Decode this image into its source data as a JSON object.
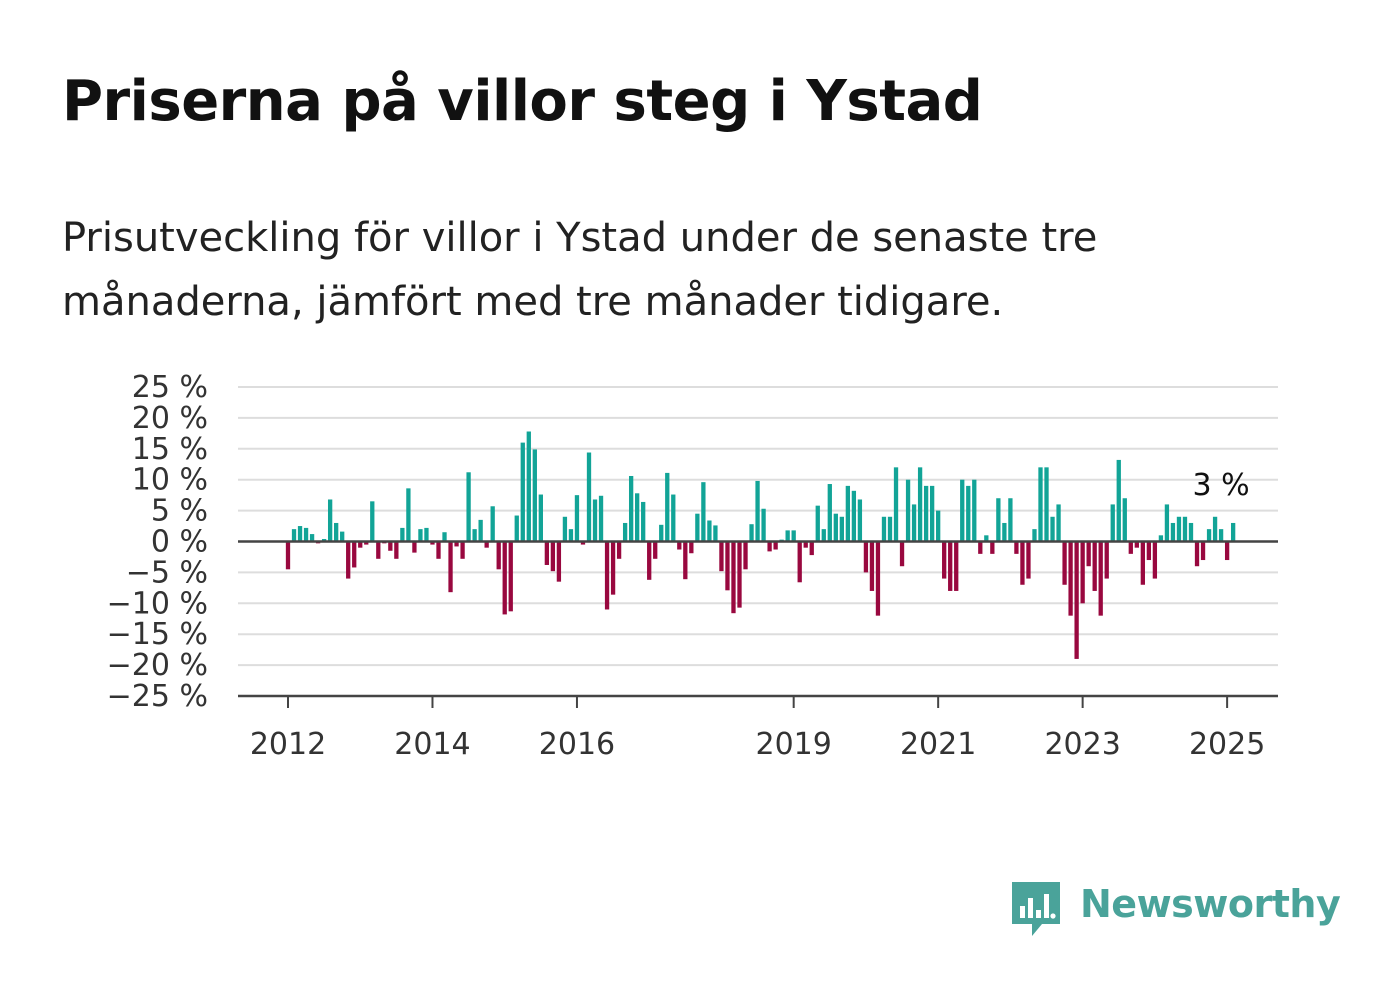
{
  "title": "Priserna på villor steg i Ystad",
  "subtitle": "Prisutveckling för villor i Ystad under de senaste tre månaderna, jämfört med tre månader tidigare.",
  "brand": "Newsworthy",
  "colors": {
    "positive": "#12a497",
    "negative": "#99083f",
    "brand": "#4aa39a",
    "grid": "#dddddd",
    "axis": "#444444"
  },
  "chart_data": {
    "type": "bar",
    "ylim": [
      -25,
      25
    ],
    "yticks": [
      -25,
      -20,
      -15,
      -10,
      -5,
      0,
      5,
      10,
      15,
      20,
      25
    ],
    "ytick_labels": [
      "−25 %",
      "−20 %",
      "−15 %",
      "−10 %",
      "−5 %",
      "0 %",
      "5 %",
      "10 %",
      "15 %",
      "20 %",
      "25 %"
    ],
    "x_start": "2012-01",
    "x_tick_labels": [
      "2012",
      "2014",
      "2016",
      "2019",
      "2021",
      "2023",
      "2025"
    ],
    "x_tick_years": [
      2012,
      2014,
      2016,
      2019,
      2021,
      2023,
      2025
    ],
    "grid": true,
    "annotation": {
      "text": "3 %",
      "value": 3
    },
    "values": [
      -4.5,
      2,
      2.5,
      2.2,
      1.2,
      -0.3,
      0.4,
      6.8,
      3,
      1.6,
      -6,
      -4.2,
      -1,
      -0.5,
      6.5,
      -2.8,
      -0.3,
      -1.5,
      -2.8,
      2.2,
      8.6,
      -1.8,
      2,
      2.2,
      -0.5,
      -2.8,
      1.5,
      -8.2,
      -0.8,
      -2.8,
      11.2,
      2,
      3.5,
      -1,
      5.7,
      -4.5,
      -11.8,
      -11.3,
      4.2,
      16,
      17.8,
      14.9,
      7.6,
      -3.8,
      -4.8,
      -6.5,
      4,
      2,
      7.5,
      -0.5,
      14.4,
      6.8,
      7.4,
      -11,
      -8.6,
      -2.8,
      3,
      10.6,
      7.8,
      6.4,
      -6.2,
      -2.8,
      2.7,
      11.1,
      7.6,
      -1.3,
      -6.1,
      -1.9,
      4.5,
      9.6,
      3.4,
      2.6,
      -4.8,
      -7.9,
      -11.6,
      -10.7,
      -4.5,
      2.8,
      9.8,
      5.3,
      -1.6,
      -1.3,
      0.3,
      1.8,
      1.8,
      -6.6,
      -1,
      -2.2,
      5.8,
      2,
      9.3,
      4.5,
      4,
      9,
      8.2,
      6.8,
      -5,
      -8,
      -12,
      4,
      4,
      12,
      -4,
      10,
      6,
      12,
      9,
      9,
      5,
      -6,
      -8,
      -8,
      10,
      9,
      10,
      -2,
      1,
      -2,
      7,
      3,
      7,
      -2,
      -7,
      -6,
      2,
      12,
      12,
      4,
      6,
      -7,
      -12,
      -19,
      -10,
      -4,
      -8,
      -12,
      -6,
      6,
      13.2,
      7,
      -2,
      -1,
      -7,
      -3,
      -6,
      1,
      6,
      3,
      4,
      4,
      3,
      -4,
      -3,
      2,
      4,
      2,
      -3,
      3
    ]
  }
}
